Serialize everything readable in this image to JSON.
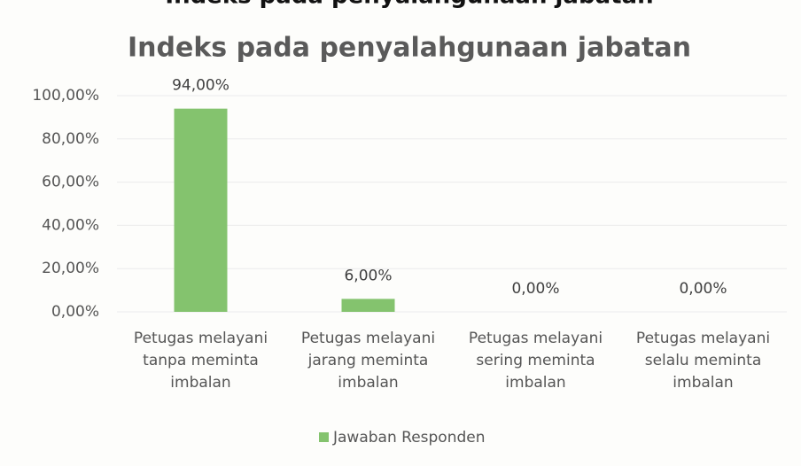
{
  "chart_data": {
    "type": "bar",
    "heading": "Indeks pada penyalahgunaan jabatan",
    "title": "Indeks pada penyalahgunaan jabatan",
    "categories": [
      "Petugas melayani tanpa meminta imbalan",
      "Petugas melayani jarang meminta imbalan",
      "Petugas melayani sering meminta imbalan",
      "Petugas melayani selalu meminta imbalan"
    ],
    "series": [
      {
        "name": "Jawaban Responden",
        "color": "#84c36e",
        "values": [
          94,
          6,
          0,
          0
        ],
        "value_labels": [
          "94,00%",
          "6,00%",
          "0,00%",
          "0,00%"
        ]
      }
    ],
    "ylim": [
      0,
      100
    ],
    "yticks": [
      {
        "value": 0,
        "label": "0,00%"
      },
      {
        "value": 20,
        "label": "20,00%"
      },
      {
        "value": 40,
        "label": "40,00%"
      },
      {
        "value": 60,
        "label": "60,00%"
      },
      {
        "value": 80,
        "label": "80,00%"
      },
      {
        "value": 100,
        "label": "100,00%"
      }
    ],
    "grid": true,
    "legend": "bottom"
  }
}
